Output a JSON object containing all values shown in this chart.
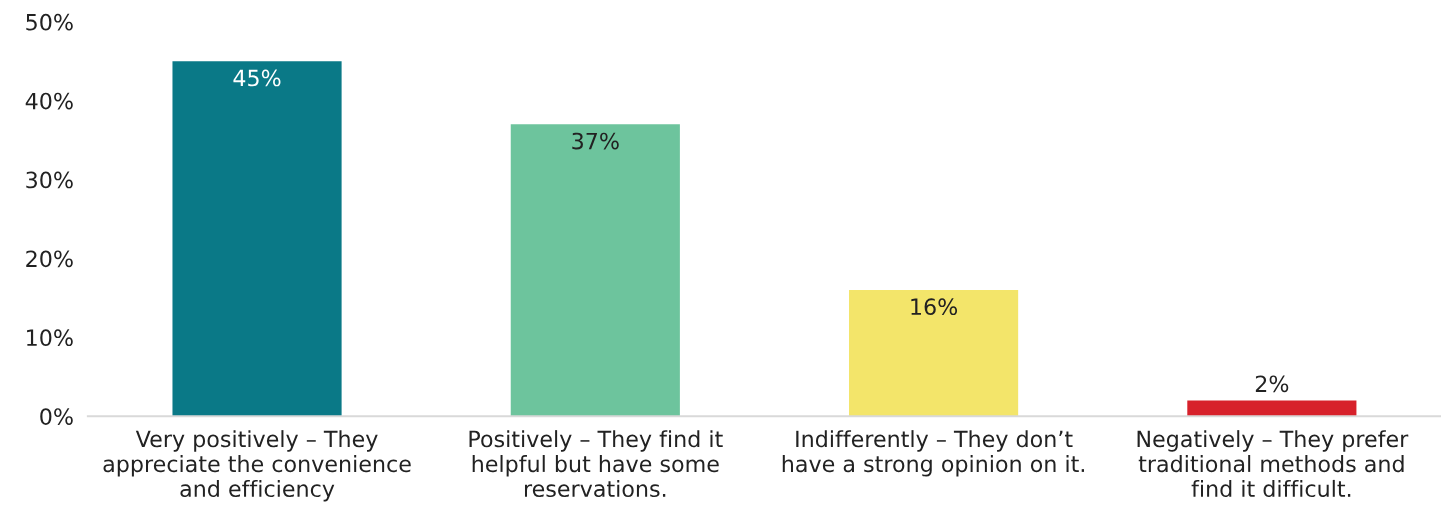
{
  "chart_data": {
    "type": "bar",
    "categories": [
      "Very positively – They\nappreciate the convenience\nand efficiency",
      "Positively – They find it\nhelpful but have some\nreservations.",
      "Indifferently – They don’t\nhave a strong opinion on it.",
      "Negatively – They prefer\ntraditional methods and\nfind it difficult."
    ],
    "values": [
      45,
      37,
      16,
      2
    ],
    "colors": [
      "#0a7987",
      "#6dc49d",
      "#f3e56a",
      "#d7212b"
    ],
    "value_labels": [
      "45%",
      "37%",
      "16%",
      "2%"
    ],
    "ylim": [
      0,
      50
    ],
    "yticks": [
      {
        "value": 0,
        "label": "0%"
      },
      {
        "value": 10,
        "label": "10%"
      },
      {
        "value": 20,
        "label": "20%"
      },
      {
        "value": 30,
        "label": "30%"
      },
      {
        "value": 40,
        "label": "40%"
      },
      {
        "value": 50,
        "label": "50%"
      }
    ],
    "grid": false,
    "legend": false
  }
}
